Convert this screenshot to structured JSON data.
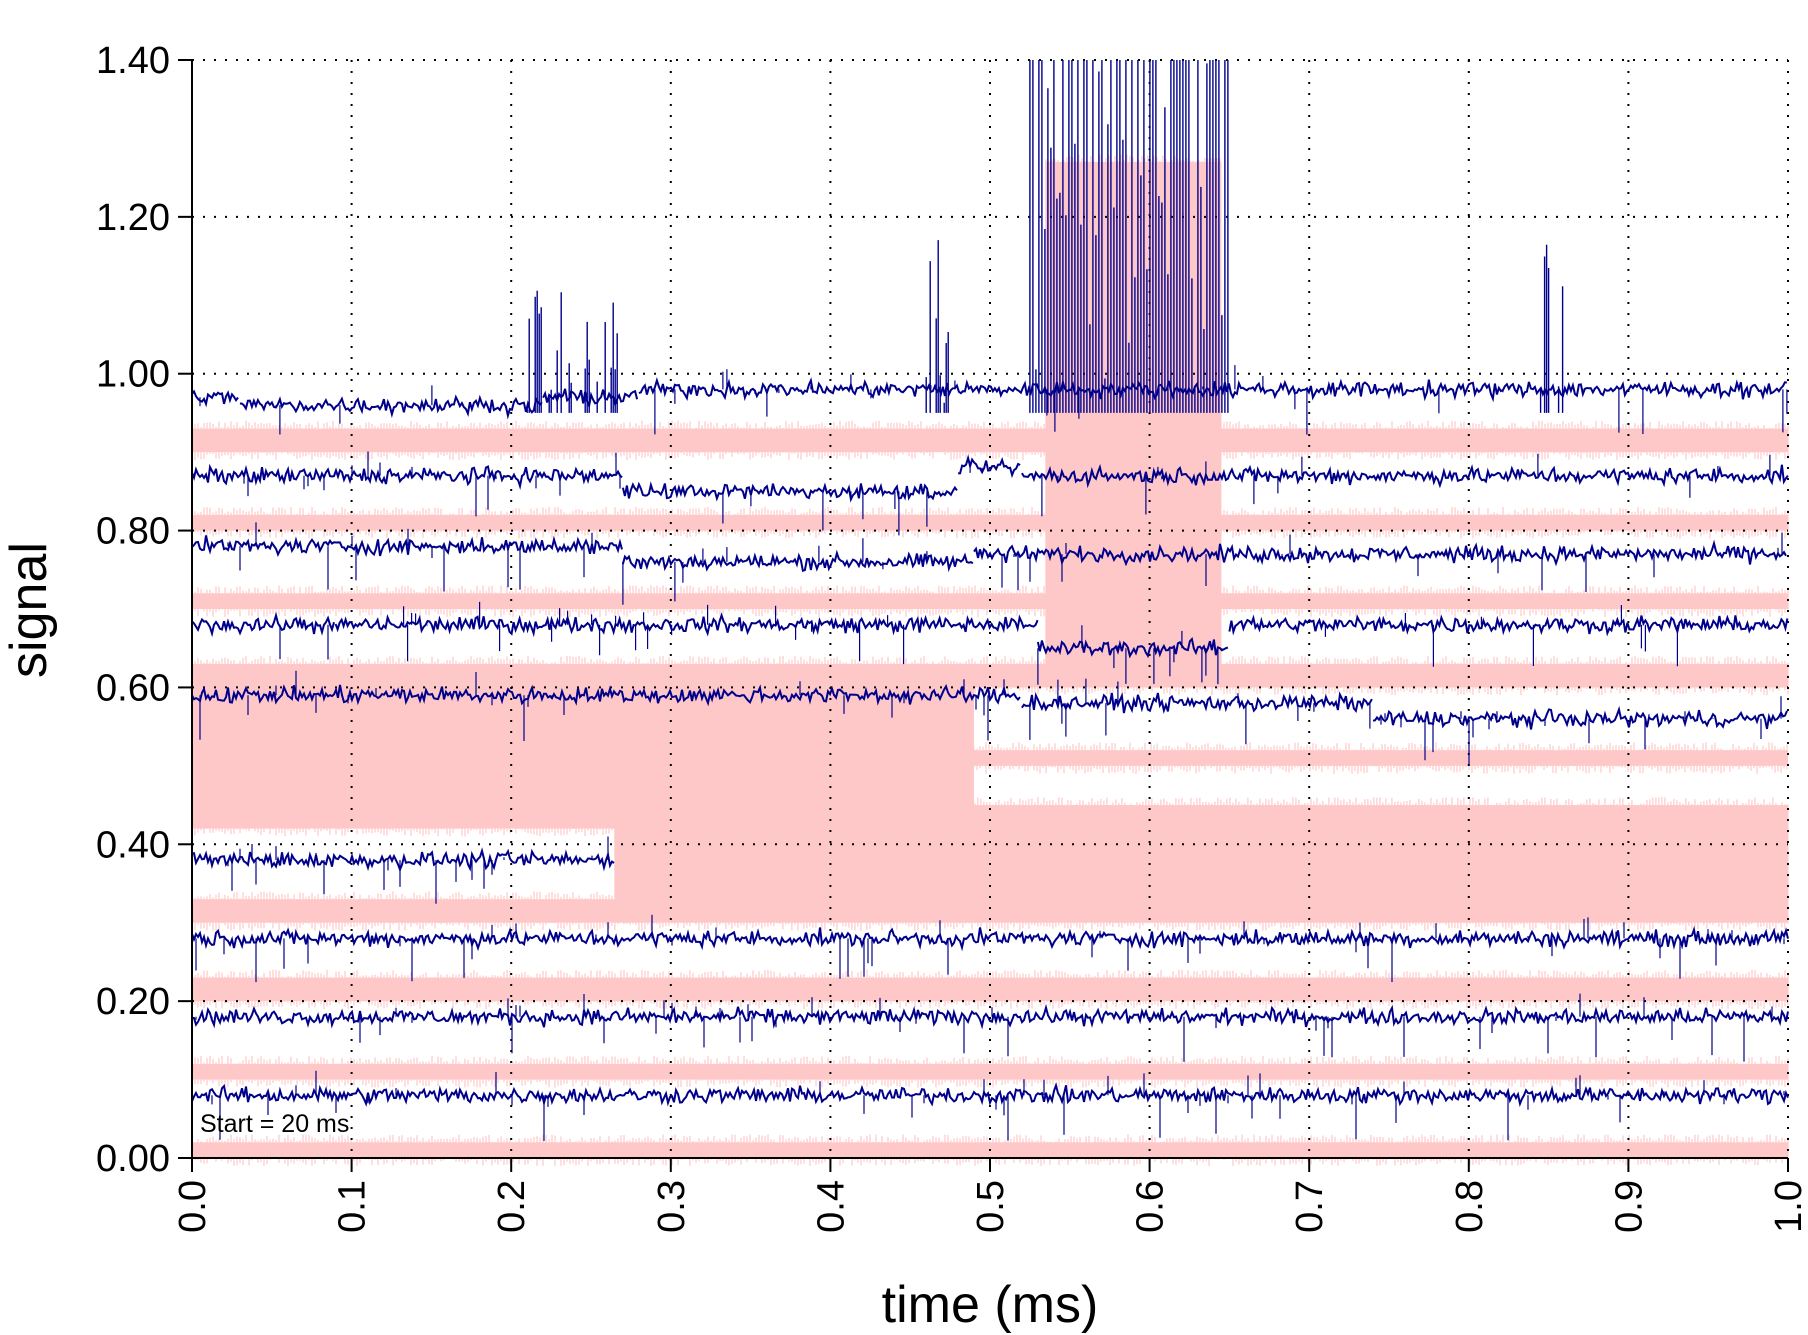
{
  "chart_data": {
    "type": "line",
    "xlabel": "time (ms)",
    "ylabel": "signal",
    "xlim": [
      0.0,
      1.0
    ],
    "ylim": [
      0.0,
      1.4
    ],
    "x_ticks": [
      "0.0",
      "0.1",
      "0.2",
      "0.3",
      "0.4",
      "0.5",
      "0.6",
      "0.7",
      "0.8",
      "0.9",
      "1.0"
    ],
    "y_ticks": [
      "0.00",
      "0.20",
      "0.40",
      "0.60",
      "0.80",
      "1.00",
      "1.20",
      "1.40"
    ],
    "grid": "dotted",
    "annotation": "Start = 20 ms",
    "colors": {
      "signal": "#00008b",
      "idealized": "#ffc8c8"
    },
    "traces": [
      {
        "baseline": 0.98,
        "segments": [
          [
            0.0,
            0.03,
            0.97
          ],
          [
            0.03,
            0.22,
            0.96
          ],
          [
            0.22,
            0.28,
            0.97
          ],
          [
            0.28,
            1.0,
            0.98
          ]
        ]
      },
      {
        "baseline": 0.88,
        "segments": [
          [
            0.0,
            0.27,
            0.87
          ],
          [
            0.27,
            0.48,
            0.85
          ],
          [
            0.48,
            0.52,
            0.88
          ],
          [
            0.52,
            1.0,
            0.87
          ]
        ]
      },
      {
        "baseline": 0.78,
        "segments": [
          [
            0.0,
            0.27,
            0.78
          ],
          [
            0.27,
            0.49,
            0.76
          ],
          [
            0.49,
            1.0,
            0.77
          ]
        ]
      },
      {
        "baseline": 0.68,
        "segments": [
          [
            0.0,
            0.09,
            0.68
          ],
          [
            0.09,
            0.53,
            0.68
          ],
          [
            0.53,
            0.65,
            0.65
          ],
          [
            0.65,
            1.0,
            0.68
          ]
        ]
      },
      {
        "baseline": 0.59,
        "segments": [
          [
            0.0,
            0.52,
            0.59
          ],
          [
            0.52,
            0.74,
            0.58
          ],
          [
            0.74,
            1.0,
            0.56
          ]
        ]
      },
      {
        "baseline": 0.38,
        "segments": [
          [
            0.0,
            0.265,
            0.38
          ]
        ]
      },
      {
        "baseline": 0.28,
        "segments": [
          [
            0.0,
            1.0,
            0.28
          ]
        ]
      },
      {
        "baseline": 0.18,
        "segments": [
          [
            0.0,
            1.0,
            0.18
          ]
        ]
      },
      {
        "baseline": 0.08,
        "segments": [
          [
            0.0,
            1.0,
            0.08
          ]
        ]
      }
    ],
    "pink_bands": [
      {
        "x": [
          0.0,
          1.0
        ],
        "y": [
          0.9,
          0.93
        ]
      },
      {
        "x": [
          0.0,
          1.0
        ],
        "y": [
          0.8,
          0.82
        ]
      },
      {
        "x": [
          0.0,
          1.0
        ],
        "y": [
          0.7,
          0.72
        ]
      },
      {
        "x": [
          0.0,
          1.0
        ],
        "y": [
          0.6,
          0.63
        ]
      },
      {
        "x": [
          0.0,
          0.49
        ],
        "y": [
          0.42,
          0.6
        ]
      },
      {
        "x": [
          0.49,
          1.0
        ],
        "y": [
          0.5,
          0.52
        ]
      },
      {
        "x": [
          0.265,
          1.0
        ],
        "y": [
          0.3,
          0.45
        ]
      },
      {
        "x": [
          0.0,
          0.265
        ],
        "y": [
          0.3,
          0.33
        ]
      },
      {
        "x": [
          0.0,
          1.0
        ],
        "y": [
          0.2,
          0.23
        ]
      },
      {
        "x": [
          0.0,
          1.0
        ],
        "y": [
          0.1,
          0.12
        ]
      },
      {
        "x": [
          0.0,
          1.0
        ],
        "y": [
          0.0,
          0.02
        ]
      },
      {
        "x": [
          0.535,
          0.645
        ],
        "y": [
          0.62,
          1.27
        ]
      }
    ],
    "spike_regions": [
      {
        "x": [
          0.525,
          0.65
        ],
        "y": [
          0.95,
          1.4
        ]
      },
      {
        "x": [
          0.21,
          0.27
        ],
        "y": [
          0.95,
          1.12
        ]
      },
      {
        "x": [
          0.455,
          0.475
        ],
        "y": [
          0.95,
          1.19
        ]
      },
      {
        "x": [
          0.845,
          0.86
        ],
        "y": [
          0.95,
          1.2
        ]
      }
    ]
  }
}
